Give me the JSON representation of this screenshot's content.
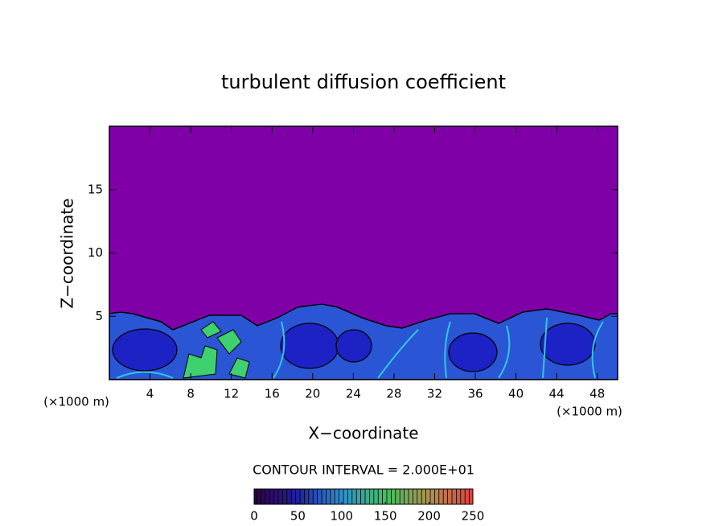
{
  "chart_data": {
    "type": "contour",
    "title": "turbulent diffusion coefficient",
    "xlabel": "X−coordinate",
    "ylabel": "Z−coordinate",
    "x_unit_labels": [
      "(×1000 m)",
      "(×1000 m)"
    ],
    "xlim": [
      0,
      50
    ],
    "xticks": [
      4,
      8,
      12,
      16,
      20,
      24,
      28,
      32,
      36,
      40,
      44,
      48
    ],
    "ylim": [
      0,
      20
    ],
    "yticks": [
      5,
      10,
      15
    ],
    "background_color": "#8000a8",
    "contour_interval_label": "CONTOUR INTERVAL = 2.000E+01",
    "colorbar": {
      "lim": [
        0,
        250
      ],
      "ticks": [
        0,
        50,
        100,
        150,
        200,
        250
      ],
      "colors": [
        "#300040",
        "#2020a0",
        "#2f8fd0",
        "#40c060",
        "#b09050",
        "#e04040"
      ]
    }
  }
}
